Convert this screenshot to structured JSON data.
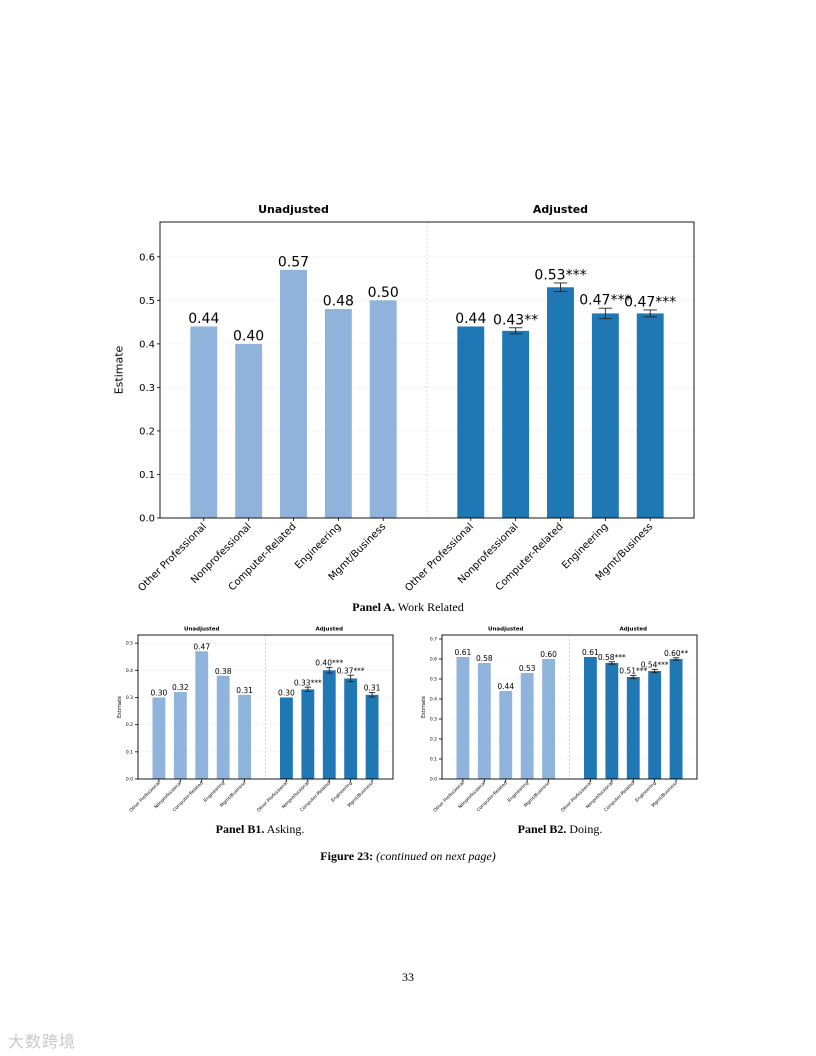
{
  "figure": {
    "panel_a_caption": {
      "label": "Panel A.",
      "text": "Work Related"
    },
    "panel_b1_caption": {
      "label": "Panel B1.",
      "text": "Asking."
    },
    "panel_b2_caption": {
      "label": "Panel B2.",
      "text": "Doing."
    },
    "figure_caption": {
      "label": "Figure 23:",
      "text": "(continued on next page)"
    }
  },
  "page_number": "33",
  "watermark": "大数跨境",
  "colors": {
    "unadjusted": "#8fb3da",
    "adjusted": "#1f77b4"
  },
  "chart_data": [
    {
      "type": "bar",
      "id": "panel_a",
      "ylabel": "Estimate",
      "ylim": [
        0,
        0.68
      ],
      "yticks": [
        0.0,
        0.1,
        0.2,
        0.3,
        0.4,
        0.5,
        0.6
      ],
      "grid": true,
      "categories": [
        "Other Professional",
        "Nonprofessional",
        "Computer-Related",
        "Engineering",
        "Mgmt/Business"
      ],
      "series": [
        {
          "name": "Unadjusted",
          "values": [
            0.44,
            0.4,
            0.57,
            0.48,
            0.5
          ],
          "labels": [
            "0.44",
            "0.40",
            "0.57",
            "0.48",
            "0.50"
          ],
          "errors": [
            0,
            0,
            0,
            0,
            0
          ]
        },
        {
          "name": "Adjusted",
          "values": [
            0.44,
            0.43,
            0.53,
            0.47,
            0.47
          ],
          "labels": [
            "0.44",
            "0.43**",
            "0.53***",
            "0.47***",
            "0.47***"
          ],
          "errors": [
            0,
            0.007,
            0.01,
            0.012,
            0.008
          ]
        }
      ]
    },
    {
      "type": "bar",
      "id": "panel_b1",
      "ylabel": "Estimate",
      "ylim": [
        0,
        0.53
      ],
      "yticks": [
        0.0,
        0.1,
        0.2,
        0.3,
        0.4,
        0.5
      ],
      "grid": true,
      "categories": [
        "Other Professional",
        "Nonprofessional",
        "Computer-Related",
        "Engineering",
        "Mgmt/Business"
      ],
      "series": [
        {
          "name": "Unadjusted",
          "values": [
            0.3,
            0.32,
            0.47,
            0.38,
            0.31
          ],
          "labels": [
            "0.30",
            "0.32",
            "0.47",
            "0.38",
            "0.31"
          ],
          "errors": [
            0,
            0,
            0,
            0,
            0
          ]
        },
        {
          "name": "Adjusted",
          "values": [
            0.3,
            0.33,
            0.4,
            0.37,
            0.31
          ],
          "labels": [
            "0.30",
            "0.33***",
            "0.40***",
            "0.37***",
            "0.31"
          ],
          "errors": [
            0,
            0.008,
            0.01,
            0.012,
            0.008
          ]
        }
      ]
    },
    {
      "type": "bar",
      "id": "panel_b2",
      "ylabel": "Estimate",
      "ylim": [
        0,
        0.72
      ],
      "yticks": [
        0.0,
        0.1,
        0.2,
        0.3,
        0.4,
        0.5,
        0.6,
        0.7
      ],
      "grid": true,
      "categories": [
        "Other Professional",
        "Nonprofessional",
        "Computer-Related",
        "Engineering",
        "Mgmt/Business"
      ],
      "series": [
        {
          "name": "Unadjusted",
          "values": [
            0.61,
            0.58,
            0.44,
            0.53,
            0.6
          ],
          "labels": [
            "0.61",
            "0.58",
            "0.44",
            "0.53",
            "0.60"
          ],
          "errors": [
            0,
            0,
            0,
            0,
            0
          ]
        },
        {
          "name": "Adjusted",
          "values": [
            0.61,
            0.58,
            0.51,
            0.54,
            0.6
          ],
          "labels": [
            "0.61",
            "0.58***",
            "0.51***",
            "0.54***",
            "0.60**"
          ],
          "errors": [
            0,
            0.006,
            0.008,
            0.008,
            0.006
          ]
        }
      ]
    }
  ]
}
